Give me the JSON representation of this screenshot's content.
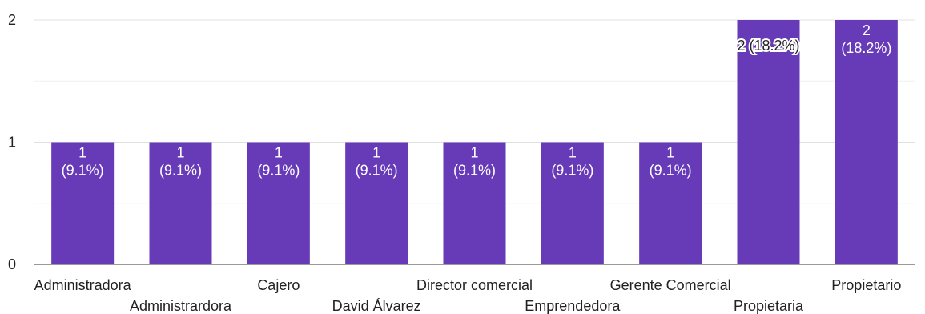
{
  "chart_data": {
    "type": "bar",
    "categories": [
      "Administradora",
      "Administrardora",
      "Cajero",
      "David Álvarez",
      "Director comercial",
      "Emprendedora",
      "Gerente Comercial",
      "Propietaria",
      "Propietario"
    ],
    "values": [
      1,
      1,
      1,
      1,
      1,
      1,
      1,
      2,
      2
    ],
    "data_labels": [
      [
        "1",
        "(9.1%)"
      ],
      [
        "1",
        "(9.1%)"
      ],
      [
        "1",
        "(9.1%)"
      ],
      [
        "1",
        "(9.1%)"
      ],
      [
        "1",
        "(9.1%)"
      ],
      [
        "1",
        "(9.1%)"
      ],
      [
        "1",
        "(9.1%)"
      ],
      [
        "2 (18.2%)"
      ],
      [
        "2",
        "(18.2%)"
      ]
    ],
    "yticks": [
      "0",
      "1",
      "2"
    ],
    "ylim": [
      0,
      2
    ],
    "grid": true,
    "bar_color": "#673ab7"
  }
}
